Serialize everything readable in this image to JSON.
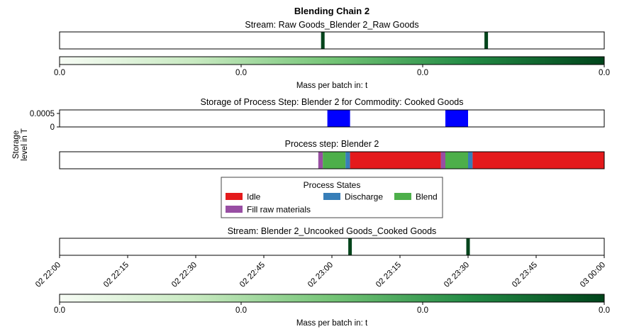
{
  "figure": {
    "title": "Blending Chain 2"
  },
  "chart_data": [
    {
      "id": "raw_stream",
      "type": "event-strip",
      "subtitle": "Stream: Raw Goods_Blender 2_Raw Goods",
      "x_range": [
        "02 22:00",
        "03 00:00"
      ],
      "events": [
        "02 22:58",
        "02 23:34"
      ],
      "event_color": "#00441b"
    },
    {
      "id": "raw_colorbar",
      "type": "colorbar",
      "label": "Mass per batch in: t",
      "tick_labels": [
        "0.0",
        "0.0",
        "0.0",
        "0.0"
      ],
      "colors": [
        "#f7fcf5",
        "#c7e9c0",
        "#74c476",
        "#238b45",
        "#00441b"
      ]
    },
    {
      "id": "storage",
      "type": "bar",
      "subtitle": "Storage of Process Step: Blender 2 for Commodity: Cooked Goods",
      "ylabel": "Storage\nlevel in T",
      "y_ticks": [
        "0.0005",
        "0"
      ],
      "ylim": [
        0,
        0.0006
      ],
      "color": "#0000ff",
      "x_range": [
        "02 22:00",
        "03 00:00"
      ],
      "intervals": [
        {
          "start": "02 22:59",
          "end": "02 23:04",
          "value": 0.0006
        },
        {
          "start": "02 23:25",
          "end": "02 23:30",
          "value": 0.0006
        }
      ]
    },
    {
      "id": "process_step",
      "type": "gantt",
      "subtitle": "Process step: Blender 2",
      "x_range": [
        "02 22:00",
        "03 00:00"
      ],
      "states": [
        {
          "name": "Idle",
          "color": "#e41a1c"
        },
        {
          "name": "Discharge",
          "color": "#377eb8"
        },
        {
          "name": "Blend",
          "color": "#4daf4a"
        },
        {
          "name": "Fill raw materials",
          "color": "#984ea3"
        }
      ],
      "segments": [
        {
          "state": "Fill raw materials",
          "start": "02 22:57",
          "end": "02 22:58"
        },
        {
          "state": "Blend",
          "start": "02 22:58",
          "end": "02 23:03"
        },
        {
          "state": "Discharge",
          "start": "02 23:03",
          "end": "02 23:04"
        },
        {
          "state": "Idle",
          "start": "02 23:04",
          "end": "02 23:24"
        },
        {
          "state": "Fill raw materials",
          "start": "02 23:24",
          "end": "02 23:25"
        },
        {
          "state": "Blend",
          "start": "02 23:25",
          "end": "02 23:30"
        },
        {
          "state": "Discharge",
          "start": "02 23:30",
          "end": "02 23:31"
        },
        {
          "state": "Idle",
          "start": "02 23:31",
          "end": "03 00:00"
        }
      ]
    },
    {
      "id": "legend",
      "type": "legend",
      "title": "Process States",
      "placement": "center"
    },
    {
      "id": "cooked_stream",
      "type": "event-strip",
      "subtitle": "Stream: Blender 2_Uncooked Goods_Cooked Goods",
      "x_range": [
        "02 22:00",
        "03 00:00"
      ],
      "events": [
        "02 23:04",
        "02 23:30"
      ],
      "event_color": "#00441b",
      "x_tick_labels": [
        "02 22:00",
        "02 22:15",
        "02 22:30",
        "02 22:45",
        "02 23:00",
        "02 23:15",
        "02 23:30",
        "02 23:45",
        "03 00:00"
      ]
    },
    {
      "id": "cooked_colorbar",
      "type": "colorbar",
      "label": "Mass per batch in: t",
      "tick_labels": [
        "0.0",
        "0.0",
        "0.0",
        "0.0"
      ],
      "colors": [
        "#f7fcf5",
        "#c7e9c0",
        "#74c476",
        "#238b45",
        "#00441b"
      ]
    }
  ]
}
